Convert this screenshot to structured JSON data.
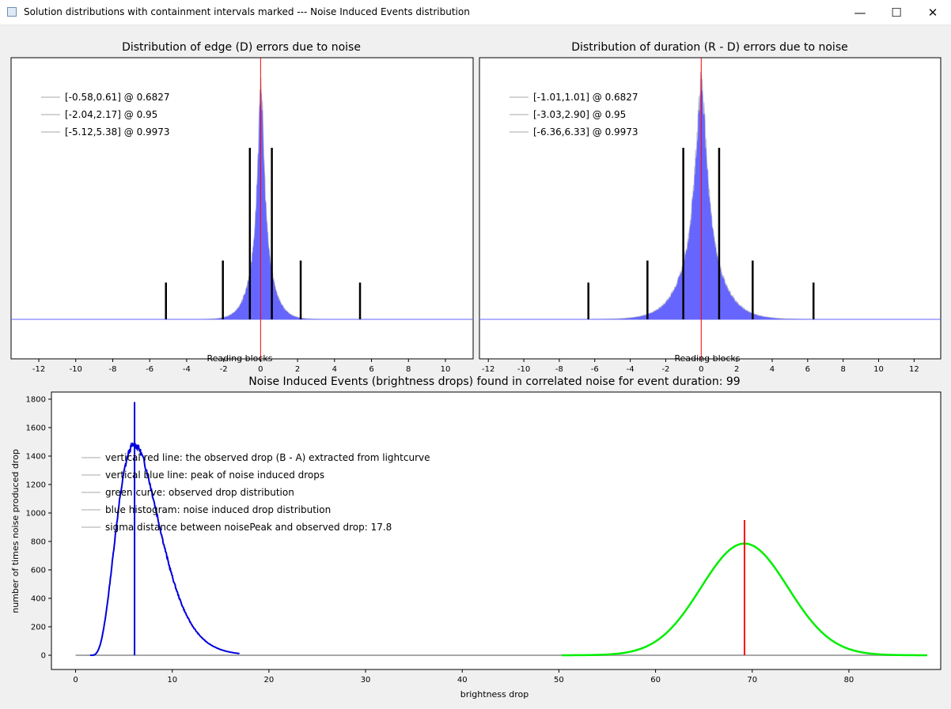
{
  "window": {
    "title": "Solution distributions with containment intervals marked --- Noise Induced Events distribution",
    "minimize_glyph": "—",
    "maximize_glyph": "☐",
    "close_glyph": "✕"
  },
  "colors": {
    "histogram": "#6666ff",
    "red_line": "#ff0000",
    "blue_curve": "#0000dd",
    "green_curve": "#00ee00",
    "interval_bar": "#000000",
    "legend_line": "#d3d3d3"
  },
  "chart_data": [
    {
      "type": "bar",
      "title": "Distribution of edge (D) errors due to noise",
      "xlabel": "Reading blocks",
      "ylabel": "",
      "xlim": [
        -13.5,
        11.5
      ],
      "x_ticks": [
        "-12",
        "-10",
        "-8",
        "-6",
        "-4",
        "-2",
        "0",
        "2",
        "4",
        "6",
        "8",
        "10"
      ],
      "red_line_x": 0,
      "distribution": {
        "center": 0.02,
        "scale": 0.45,
        "shape": "laplace-like",
        "peak_x": 0
      },
      "intervals": [
        {
          "lo": -0.58,
          "hi": 0.61,
          "confidence": 0.6827,
          "bar_height": 0.7
        },
        {
          "lo": -2.04,
          "hi": 2.17,
          "confidence": 0.95,
          "bar_height": 0.24
        },
        {
          "lo": -5.12,
          "hi": 5.38,
          "confidence": 0.9973,
          "bar_height": 0.15
        }
      ],
      "legend": [
        "[-0.58,0.61] @ 0.6827",
        "[-2.04,2.17] @ 0.95",
        "[-5.12,5.38] @ 0.9973"
      ]
    },
    {
      "type": "bar",
      "title": "Distribution of duration (R - D) errors due to noise",
      "xlabel": "Reading blocks",
      "ylabel": "",
      "xlim": [
        -12.5,
        13.5
      ],
      "x_ticks": [
        "-12",
        "-10",
        "-8",
        "-6",
        "-4",
        "-2",
        "0",
        "2",
        "4",
        "6",
        "8",
        "10",
        "12"
      ],
      "red_line_x": 0,
      "distribution": {
        "center": 0.0,
        "scale": 0.85,
        "shape": "laplace-like",
        "peak_x": 0
      },
      "intervals": [
        {
          "lo": -1.01,
          "hi": 1.01,
          "confidence": 0.6827,
          "bar_height": 0.7
        },
        {
          "lo": -3.03,
          "hi": 2.9,
          "confidence": 0.95,
          "bar_height": 0.24
        },
        {
          "lo": -6.36,
          "hi": 6.33,
          "confidence": 0.9973,
          "bar_height": 0.15
        }
      ],
      "legend": [
        "[-1.01,1.01] @ 0.6827",
        "[-3.03,2.90] @ 0.95",
        "[-6.36,6.33] @ 0.9973"
      ]
    },
    {
      "type": "line",
      "title": "Noise Induced Events (brightness drops) found in correlated noise for event duration: 99",
      "xlabel": "brightness drop",
      "ylabel": "number of times noise produced drop",
      "xlim": [
        -2.5,
        89.5
      ],
      "ylim": [
        -100,
        1850
      ],
      "x_ticks": [
        0,
        10,
        20,
        30,
        40,
        50,
        60,
        70,
        80
      ],
      "y_ticks": [
        0,
        200,
        400,
        600,
        800,
        1000,
        1200,
        1400,
        1600,
        1800
      ],
      "series": [
        {
          "role": "noise induced drop distribution",
          "shape": "skewed",
          "peak_x": 6.1,
          "peak_y": 1480,
          "x_start": 1.5,
          "x_end": 17
        },
        {
          "role": "observed drop distribution",
          "shape": "gaussian",
          "mean": 69.2,
          "sigma": 4.5,
          "peak_y": 785
        }
      ],
      "baseline": {
        "x_start": 0,
        "x_end": 87,
        "y": 0
      },
      "vertical_blue_line": {
        "x": 6.1,
        "y_top": 1780
      },
      "vertical_red_line": {
        "x": 69.2,
        "y_top": 950
      },
      "legend": [
        "vertical red line: the observed drop (B - A) extracted from lightcurve",
        "vertical blue line: peak of noise induced drops",
        "green curve: observed drop distribution",
        "blue histogram: noise induced drop distribution",
        "sigma distance between noisePeak and observed drop: 17.8"
      ]
    }
  ]
}
